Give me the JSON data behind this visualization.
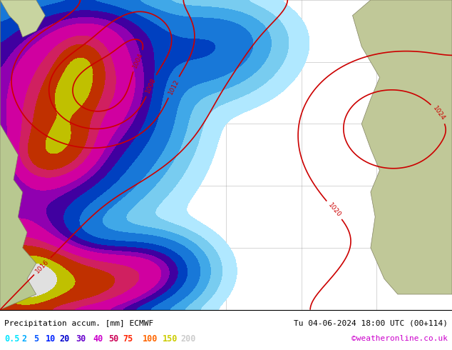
{
  "title_left": "Precipitation accum. [mm] ECMWF",
  "title_right": "Tu 04-06-2024 18:00 UTC (00+114)",
  "colorbar_values": [
    "0.5",
    "2",
    "5",
    "10",
    "20",
    "30",
    "40",
    "50",
    "75",
    "100",
    "150",
    "200"
  ],
  "cb_colors": [
    "#00e5ff",
    "#00aaff",
    "#0055ff",
    "#0022ff",
    "#0000cc",
    "#6600cc",
    "#cc00cc",
    "#cc0055",
    "#ff2200",
    "#ff6600",
    "#cccc00",
    "#cccccc"
  ],
  "watermark": "©weatheronline.co.uk",
  "ocean_color": "#a8d8f0",
  "land_color_left": "#c8d4a0",
  "land_color_right": "#d4c8a8",
  "fig_width": 6.34,
  "fig_height": 4.9,
  "dpi": 100,
  "precip_colors": [
    "#b0e8ff",
    "#78ccf0",
    "#40a8e8",
    "#1878d8",
    "#0040c0",
    "#4000a0",
    "#9000b0",
    "#d000a0",
    "#d02060",
    "#c03000",
    "#c0c000",
    "#e0e0e0"
  ],
  "isobar_levels": [
    1004,
    1008,
    1012,
    1016,
    1020,
    1024
  ],
  "isobar_color": "#cc0000"
}
